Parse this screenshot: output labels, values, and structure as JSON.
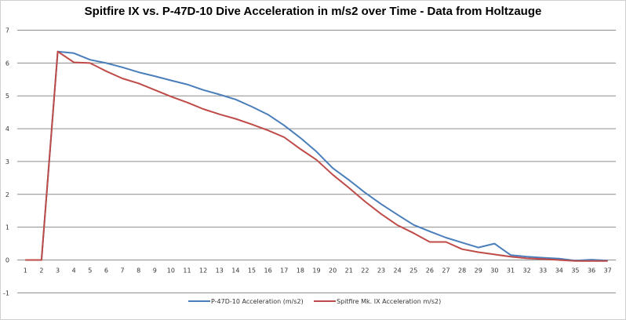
{
  "chart_data": {
    "type": "line",
    "title": "Spitfire IX vs. P-47D-10 Dive Acceleration in m/s2 over Time - Data from Holtzauge",
    "xlabel": "",
    "ylabel": "",
    "categories": [
      1,
      2,
      3,
      4,
      5,
      6,
      7,
      8,
      9,
      10,
      11,
      12,
      13,
      14,
      15,
      16,
      17,
      18,
      19,
      20,
      21,
      22,
      23,
      24,
      25,
      26,
      27,
      28,
      29,
      30,
      31,
      32,
      33,
      34,
      35,
      36,
      37
    ],
    "ylim": [
      -1,
      7
    ],
    "yticks": [
      -1,
      0,
      1,
      2,
      3,
      4,
      5,
      6,
      7
    ],
    "grid": true,
    "legend_position": "bottom",
    "series": [
      {
        "name": "P-47D-10 Acceleration (m/s2)",
        "color": "#4a7ebb",
        "values": [
          0,
          0,
          6.35,
          6.3,
          6.1,
          6.0,
          5.87,
          5.72,
          5.6,
          5.47,
          5.35,
          5.18,
          5.04,
          4.89,
          4.67,
          4.43,
          4.1,
          3.72,
          3.3,
          2.8,
          2.44,
          2.05,
          1.7,
          1.38,
          1.07,
          0.87,
          0.68,
          0.53,
          0.38,
          0.5,
          0.15,
          0.1,
          0.07,
          0.04,
          -0.02,
          0.01,
          -0.02
        ]
      },
      {
        "name": "Spitfire Mk. IX Acceleration m/s2)",
        "color": "#be4b48",
        "values": [
          0,
          0,
          6.35,
          6.02,
          6.0,
          5.75,
          5.53,
          5.38,
          5.18,
          4.98,
          4.8,
          4.6,
          4.44,
          4.3,
          4.13,
          3.95,
          3.74,
          3.38,
          3.05,
          2.6,
          2.2,
          1.78,
          1.4,
          1.06,
          0.82,
          0.55,
          0.55,
          0.33,
          0.24,
          0.17,
          0.1,
          0.05,
          0.03,
          0.0,
          -0.03,
          -0.03,
          -0.03
        ]
      }
    ]
  }
}
